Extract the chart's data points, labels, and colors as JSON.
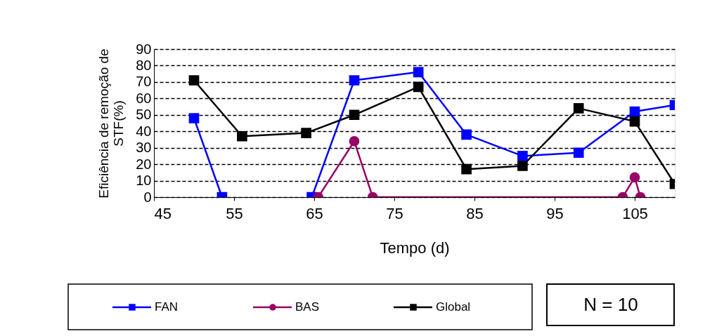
{
  "chart_data": {
    "type": "line",
    "ylabel": "Eficiência de remoção de\nSTF(%)",
    "xlabel": "Tempo  (d)",
    "xlim": [
      45,
      110
    ],
    "xticks": [
      45,
      55,
      65,
      75,
      85,
      95,
      105
    ],
    "ylim": [
      0,
      90
    ],
    "yticks": [
      0,
      10,
      20,
      30,
      40,
      50,
      60,
      70,
      80,
      90
    ],
    "grid": "y",
    "legend": "bottom",
    "line_style": "solid",
    "annotations": [
      "N = 10"
    ],
    "series": [
      {
        "name": "FAN",
        "color": "#0000ff",
        "marker": "square",
        "x": [
          50,
          53.5,
          56,
          64,
          64.7,
          70,
          78,
          84,
          91,
          98,
          105,
          110
        ],
        "values": [
          48,
          0,
          null,
          null,
          0,
          71,
          76,
          38,
          25,
          27,
          52,
          56
        ]
      },
      {
        "name": "BAS",
        "color": "#990066",
        "marker": "circle",
        "x": [
          65.5,
          70,
          72.3,
          103.5,
          105,
          105.7
        ],
        "values": [
          0,
          34,
          0,
          0,
          12,
          0
        ]
      },
      {
        "name": "Global",
        "color": "#000000",
        "marker": "square",
        "x": [
          50,
          56,
          64,
          70,
          78,
          84,
          91,
          98,
          105,
          110
        ],
        "values": [
          71,
          37,
          39,
          50,
          67,
          17,
          19,
          54,
          46,
          8
        ]
      }
    ]
  }
}
